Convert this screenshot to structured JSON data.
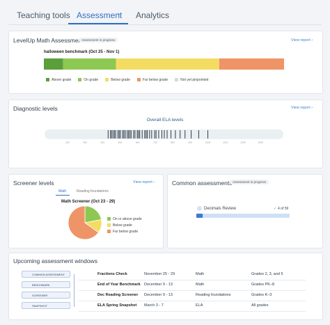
{
  "tabs": [
    "Teaching tools",
    "Assessment",
    "Analytics"
  ],
  "levelup": {
    "title": "LevelUp Math Assessment",
    "badge": "Assessment in progress",
    "link": "View report ›",
    "subtitle": "halloween benchmark (Oct 25 - Nov 1)",
    "chart_data": {
      "type": "stacked-bar",
      "xlim": [
        0,
        100
      ],
      "series": [
        {
          "name": "Above grade",
          "color": "#5b9e3c",
          "values": [
            8
          ]
        },
        {
          "name": "On grade",
          "color": "#8dc852",
          "values": [
            22
          ]
        },
        {
          "name": "Below grade",
          "color": "#f4dc62",
          "values": [
            43
          ]
        },
        {
          "name": "Far below grade",
          "color": "#ef9466",
          "values": [
            27
          ]
        },
        {
          "name": "Not yet pinpointed",
          "color": "#d9d9d9",
          "values": [
            0
          ]
        }
      ]
    }
  },
  "diagnostic": {
    "title": "Diagnostic levels",
    "link": "View report ›",
    "chart_data": {
      "type": "barcode",
      "title": "Overall ELA levels",
      "xlim": [
        70,
        1430
      ],
      "xticks": [
        200,
        300,
        400,
        500,
        600,
        700,
        800,
        900,
        1000,
        1100,
        1200,
        1300
      ],
      "color": "#2d3a4a",
      "values": [
        432,
        445,
        452,
        460,
        468,
        475,
        488,
        495,
        502,
        515,
        522,
        530,
        541,
        548,
        556,
        563,
        577,
        585,
        598,
        605,
        612,
        626,
        640,
        648,
        655,
        668,
        680,
        697,
        705,
        720,
        738,
        752,
        768,
        790,
        815,
        842,
        870,
        905,
        948,
        1000
      ]
    }
  },
  "screener": {
    "title": "Screener levels",
    "link": "View report ›",
    "subtabs": [
      "Math",
      "Reading foundations"
    ],
    "chart_data": {
      "type": "pie",
      "title": "Math Screener (Oct 23 - 29)",
      "categories": [
        "On or above grade",
        "Below grade",
        "Far below grade"
      ],
      "colors": [
        "#8dc852",
        "#f4dc62",
        "#ef9466"
      ],
      "values": [
        22,
        13,
        65
      ]
    }
  },
  "common": {
    "title": "Common assessments",
    "badge": "Assessment in progress",
    "item": "Decimals Review",
    "progress_label": "4 of 59",
    "completed": 4,
    "total": 59
  },
  "upcoming": {
    "title": "Upcoming assessment windows",
    "tags": [
      "COMMON ASSESSMENT",
      "BENCHMARK",
      "SCREENER",
      "SNAPSHOT"
    ],
    "rows": [
      [
        "Fractions Check",
        "November 25 - 29",
        "Math",
        "Grades 2, 3, and 5"
      ],
      [
        "End of Year Benchmark",
        "December 9 - 13",
        "Math",
        "Grades PK–8"
      ],
      [
        "Dec Reading Screener",
        "December 9 - 13",
        "Reading foundations",
        "Grades K–3"
      ],
      [
        "ELA Spring Snapshot",
        "March 3 - 7",
        "ELA",
        "All grades"
      ]
    ]
  }
}
